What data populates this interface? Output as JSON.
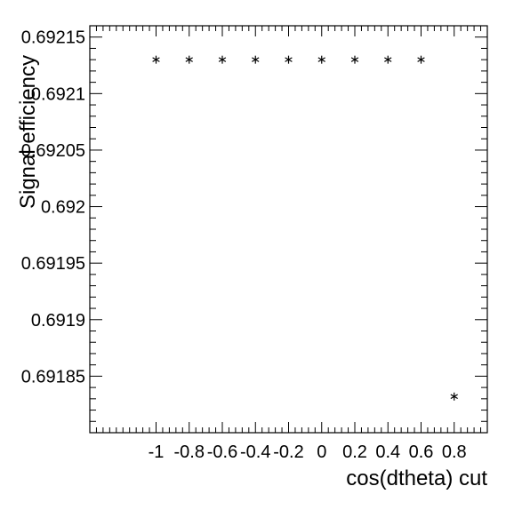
{
  "chart_data": {
    "type": "scatter",
    "title": "",
    "xlabel": "cos(dtheta) cut",
    "ylabel": "Signal efficiency",
    "xlim": [
      -1.4,
      1.0
    ],
    "ylim": [
      0.6918,
      0.69216
    ],
    "x_ticks": [
      -1,
      -0.8,
      -0.6,
      -0.4,
      -0.2,
      0,
      0.2,
      0.4,
      0.6,
      0.8
    ],
    "x_tick_labels": [
      "-1",
      "-0.8",
      "-0.6",
      "-0.4",
      "-0.2",
      "0",
      "0.2",
      "0.4",
      "0.6",
      "0.8"
    ],
    "y_ticks": [
      0.69185,
      0.6919,
      0.69195,
      0.692,
      0.69205,
      0.6921,
      0.69215
    ],
    "y_tick_labels": [
      "0.69185",
      "0.6919",
      "0.69195",
      "0.692",
      "0.69205",
      "0.6921",
      "0.69215"
    ],
    "grid": false,
    "marker": "asterisk",
    "marker_color": "#000000",
    "series": [
      {
        "x": [
          -1,
          -0.8,
          -0.6,
          -0.4,
          -0.2,
          0,
          0.2,
          0.4,
          0.6,
          0.8
        ],
        "y": [
          0.69213,
          0.69213,
          0.69213,
          0.69213,
          0.69213,
          0.69213,
          0.69213,
          0.69213,
          0.69213,
          0.691832
        ]
      }
    ]
  }
}
